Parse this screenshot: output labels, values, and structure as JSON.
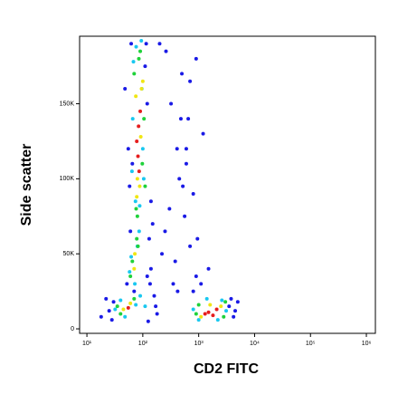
{
  "chart_data": {
    "type": "scatter",
    "x_label": "CD2 FITC",
    "y_label": "Side scatter",
    "xlog": true,
    "xlim": [
      7.4,
      1450000
    ],
    "ylim": [
      -3000,
      195000
    ],
    "xticks": [
      {
        "value": 10,
        "label": "10¹"
      },
      {
        "value": 100,
        "label": "10²"
      },
      {
        "value": 1000,
        "label": "10³"
      },
      {
        "value": 10000,
        "label": "10⁴"
      },
      {
        "value": 100000,
        "label": "10⁵"
      },
      {
        "value": 1000000,
        "label": "10⁶"
      }
    ],
    "yticks": [
      {
        "value": 0,
        "label": "0"
      },
      {
        "value": 50000,
        "label": "50K"
      },
      {
        "value": 100000,
        "label": "100K"
      },
      {
        "value": 150000,
        "label": "150K"
      }
    ],
    "series": [
      {
        "color": "#1a1ae6",
        "x": [
          62,
          110,
          120,
          55,
          58,
          130,
          140,
          52,
          70,
          150,
          115,
          48,
          200,
          260,
          320,
          410,
          500,
          650,
          800,
          950,
          380,
          450,
          560,
          700,
          900,
          1200,
          600,
          300,
          250,
          220,
          3500,
          4500,
          5000,
          4200,
          3800,
          25,
          30,
          18,
          22,
          28,
          160,
          170,
          180,
          140,
          135,
          60,
          65,
          120,
          125,
          800,
          1100,
          1500,
          700,
          900,
          350,
          420,
          480,
          520,
          600
        ],
        "y": [
          190000,
          175000,
          150000,
          120000,
          95000,
          60000,
          40000,
          30000,
          25000,
          70000,
          190000,
          160000,
          190000,
          185000,
          150000,
          120000,
          170000,
          140000,
          90000,
          60000,
          45000,
          100000,
          75000,
          55000,
          35000,
          130000,
          110000,
          80000,
          65000,
          50000,
          15000,
          12000,
          18000,
          8000,
          20000,
          12000,
          18000,
          8000,
          20000,
          6000,
          22000,
          15000,
          10000,
          85000,
          30000,
          65000,
          110000,
          35000,
          5000,
          25000,
          30000,
          40000,
          165000,
          180000,
          30000,
          25000,
          140000,
          95000,
          120000
        ]
      },
      {
        "color": "#19c8f0",
        "x": [
          68,
          96,
          100,
          74,
          66,
          62,
          86,
          94,
          58,
          72,
          76,
          104,
          88,
          64,
          1000,
          1400,
          2600,
          3100,
          800,
          2200,
          40,
          48,
          32,
          75,
          90,
          110,
          80
        ],
        "y": [
          178000,
          160000,
          120000,
          85000,
          140000,
          48000,
          65000,
          192000,
          38000,
          30000,
          188000,
          100000,
          82000,
          105000,
          6000,
          20000,
          19000,
          12000,
          13000,
          6000,
          19000,
          8000,
          13000,
          16000,
          22000,
          15000,
          55000
        ]
      },
      {
        "color": "#1fd23a",
        "x": [
          70,
          98,
          85,
          105,
          76,
          65,
          82,
          90,
          60,
          78,
          900,
          3000,
          2800,
          1000,
          40,
          70,
          35,
          110,
          80
        ],
        "y": [
          170000,
          110000,
          180000,
          140000,
          80000,
          45000,
          55000,
          185000,
          35000,
          60000,
          10000,
          18000,
          8000,
          16000,
          10000,
          20000,
          15000,
          95000,
          75000
        ]
      },
      {
        "color": "#f0e614",
        "x": [
          75,
          92,
          88,
          80,
          95,
          72,
          70,
          78,
          1100,
          2500,
          1600,
          45,
          60,
          100
        ],
        "y": [
          155000,
          128000,
          95000,
          100000,
          160000,
          50000,
          40000,
          88000,
          8000,
          15000,
          16000,
          13000,
          17000,
          165000
        ]
      },
      {
        "color": "#e61e1e",
        "x": [
          78,
          84,
          90,
          82,
          86,
          1500,
          1800,
          2100,
          1300,
          55
        ],
        "y": [
          125000,
          135000,
          145000,
          115000,
          105000,
          11000,
          9000,
          13000,
          10000,
          14000
        ]
      }
    ]
  }
}
